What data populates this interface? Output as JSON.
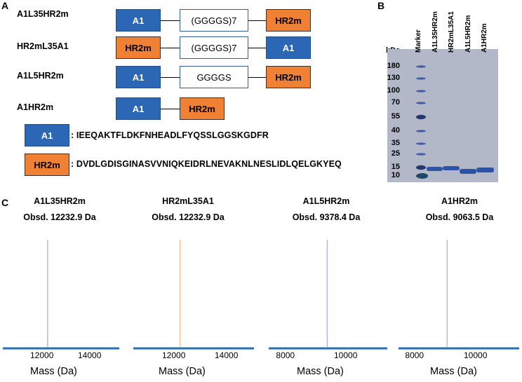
{
  "panels": {
    "a": "A",
    "b": "B",
    "c": "C"
  },
  "constructs": [
    {
      "name": "A1L35HR2m",
      "segments": [
        "A1",
        "(GGGGS)7",
        "HR2m"
      ]
    },
    {
      "name": "HR2mL35A1",
      "segments": [
        "HR2m",
        "(GGGGS)7",
        "A1"
      ]
    },
    {
      "name": "A1L5HR2m",
      "segments": [
        "A1",
        "GGGGS",
        "HR2m"
      ]
    },
    {
      "name": "A1HR2m",
      "segments": [
        "A1",
        "HR2m"
      ]
    }
  ],
  "sequences": [
    {
      "label": "A1",
      "seq": ": IEEQAKTFLDKFNHEADLFYQSSLGGSKGDFR"
    },
    {
      "label": "HR2m",
      "seq": ": DVDLGDISGINASVVNIQKEIDRLNEVAKNLNESLIDLQELGKYEQ"
    }
  ],
  "gel": {
    "unit": "kDa",
    "lanes": [
      "Marker",
      "A1L35HR2m",
      "HR2mL35A1",
      "A1L5HR2m",
      "A1HR2m"
    ],
    "markers": [
      "180",
      "130",
      "100",
      "70",
      "55",
      "40",
      "35",
      "25",
      "15",
      "10"
    ]
  },
  "spectra": [
    {
      "name": "A1L35HR2m",
      "obsd": "Obsd. 12232.9 Da",
      "ticks": [
        "12000",
        "14000"
      ],
      "peak": 12232.9,
      "color": "#9b8fd6"
    },
    {
      "name": "HR2mL35A1",
      "obsd": "Obsd. 12232.9 Da",
      "ticks": [
        "12000",
        "14000"
      ],
      "peak": 12232.9,
      "color": "#f0b070"
    },
    {
      "name": "A1L5HR2m",
      "obsd": "Obsd. 9378.4 Da",
      "ticks": [
        "8000",
        "10000"
      ],
      "peak": 9378.4,
      "color": "#8f9fe0"
    },
    {
      "name": "A1HR2m",
      "obsd": "Obsd. 9063.5 Da",
      "ticks": [
        "8000",
        "10000"
      ],
      "peak": 9063.5,
      "color": "#8f9fe0"
    }
  ],
  "xlabel": "Mass (Da)",
  "colors": {
    "a1": "#2b67b5",
    "hr2m": "#ef8034",
    "axis": "#2a6cb8"
  }
}
